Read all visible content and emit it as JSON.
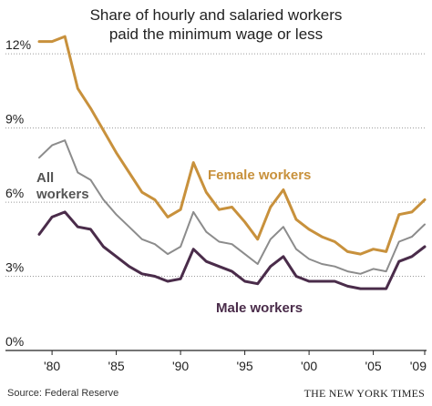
{
  "chart_data": {
    "type": "line",
    "title_lines": [
      "Share of hourly and salaried workers",
      "paid the minimum wage or less"
    ],
    "xlabel": "",
    "ylabel": "",
    "x": [
      1979,
      1980,
      1981,
      1982,
      1983,
      1984,
      1985,
      1986,
      1987,
      1988,
      1989,
      1990,
      1991,
      1992,
      1993,
      1994,
      1995,
      1996,
      1997,
      1998,
      1999,
      2000,
      2001,
      2002,
      2003,
      2004,
      2005,
      2006,
      2007,
      2008,
      2009
    ],
    "xlim": [
      1979,
      2009
    ],
    "ylim": [
      0,
      13
    ],
    "x_ticks": [
      {
        "value": 1980,
        "label": "'80"
      },
      {
        "value": 1985,
        "label": "'85"
      },
      {
        "value": 1990,
        "label": "'90"
      },
      {
        "value": 1995,
        "label": "'95"
      },
      {
        "value": 2000,
        "label": "'00"
      },
      {
        "value": 2005,
        "label": "'05"
      },
      {
        "value": 2009,
        "label": "'09"
      }
    ],
    "y_ticks": [
      {
        "value": 0,
        "label": "0%"
      },
      {
        "value": 3,
        "label": "3%"
      },
      {
        "value": 6,
        "label": "6%"
      },
      {
        "value": 9,
        "label": "9%"
      },
      {
        "value": 12,
        "label": "12%"
      }
    ],
    "grid": true,
    "series": [
      {
        "name": "Female workers",
        "color": "#c8913c",
        "label_position": "right of 1991 peak",
        "values": [
          12.5,
          12.5,
          12.7,
          10.6,
          9.8,
          8.9,
          8.0,
          7.2,
          6.4,
          6.1,
          5.4,
          5.7,
          7.6,
          6.4,
          5.7,
          5.8,
          5.2,
          4.5,
          5.8,
          6.5,
          5.3,
          4.9,
          4.6,
          4.4,
          4.0,
          3.9,
          4.1,
          4.0,
          5.5,
          5.6,
          6.1
        ]
      },
      {
        "name": "All workers",
        "display_lines": [
          "All",
          "workers"
        ],
        "color": "#8c8c8c",
        "label_position": "left, above line",
        "values": [
          7.8,
          8.3,
          8.5,
          7.2,
          6.9,
          6.1,
          5.5,
          5.0,
          4.5,
          4.3,
          3.9,
          4.2,
          5.6,
          4.8,
          4.4,
          4.3,
          3.9,
          3.5,
          4.5,
          5.0,
          4.1,
          3.7,
          3.5,
          3.4,
          3.2,
          3.1,
          3.3,
          3.2,
          4.4,
          4.6,
          5.1
        ]
      },
      {
        "name": "Male workers",
        "color": "#4a2c4a",
        "label_position": "below line, center",
        "values": [
          4.7,
          5.4,
          5.6,
          5.0,
          4.9,
          4.2,
          3.8,
          3.4,
          3.1,
          3.0,
          2.8,
          2.9,
          4.1,
          3.6,
          3.4,
          3.2,
          2.8,
          2.7,
          3.4,
          3.8,
          3.0,
          2.8,
          2.8,
          2.8,
          2.6,
          2.5,
          2.5,
          2.5,
          3.6,
          3.8,
          4.2
        ]
      }
    ]
  },
  "footer": {
    "source": "Source: Federal Reserve",
    "credit": "THE NEW YORK TIMES"
  }
}
